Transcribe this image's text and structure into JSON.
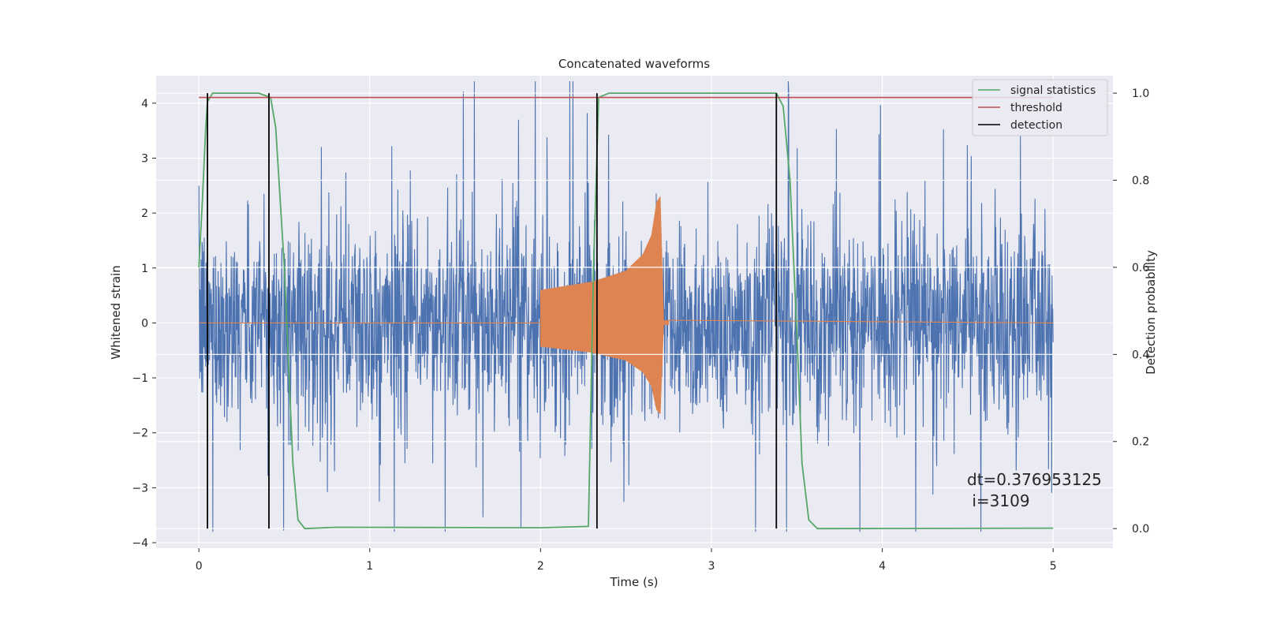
{
  "chart_data": {
    "type": "line",
    "title": "Concatenated waveforms",
    "xlabel": "Time (s)",
    "ylabel": "Whitened strain",
    "ylabel_right": "Detection probability",
    "xlim": [
      -0.25,
      5.35
    ],
    "ylim": [
      -4.1,
      4.5
    ],
    "ylim_right": [
      -0.045,
      1.04
    ],
    "x_ticks": [
      "0",
      "1",
      "2",
      "3",
      "4",
      "5"
    ],
    "y_ticks": [
      "4",
      "3",
      "2",
      "1",
      "0",
      "−1",
      "−2",
      "−3",
      "−4"
    ],
    "y_ticks_right": [
      "1.0",
      "0.8",
      "0.6",
      "0.4",
      "0.2",
      "0.0"
    ],
    "grid": true,
    "legend": {
      "placement": "top-right",
      "entries": [
        {
          "label": "signal statistics",
          "color": "#55a868"
        },
        {
          "label": "threshold",
          "color": "#c44e52"
        },
        {
          "label": "detection",
          "color": "#000000"
        }
      ]
    },
    "annotation": {
      "line1": "dt=0.376953125",
      "line2": " i=3109"
    },
    "series": [
      {
        "color": "#4c72b0",
        "axis": "left",
        "description": "whitened noise strain, approx. amplitude band",
        "x": [
          0,
          5
        ],
        "band_typical": 1.3,
        "band_peak": [
          -3.8,
          4.4
        ]
      },
      {
        "color": "#dd8452",
        "axis": "left",
        "description": "injected chirp waveform",
        "x": [
          0,
          2.0,
          2.3,
          2.5,
          2.6,
          2.65,
          2.68,
          2.7,
          2.72,
          5
        ],
        "amplitude": [
          0,
          0.6,
          0.75,
          0.95,
          1.25,
          1.6,
          2.2,
          2.3,
          0.05,
          0
        ]
      },
      {
        "name": "signal statistics",
        "color": "#55a868",
        "axis": "right",
        "x": [
          0,
          0.02,
          0.04,
          0.05,
          0.08,
          0.2,
          0.35,
          0.42,
          0.45,
          0.5,
          0.55,
          0.58,
          0.62,
          0.8,
          2.0,
          2.28,
          2.31,
          2.34,
          2.4,
          3.3,
          3.38,
          3.42,
          3.46,
          3.5,
          3.53,
          3.57,
          3.62,
          5.0
        ],
        "values": [
          0.6,
          0.75,
          0.92,
          0.98,
          1.0,
          1.0,
          1.0,
          0.99,
          0.92,
          0.6,
          0.15,
          0.02,
          0.0,
          0.003,
          0.002,
          0.005,
          0.6,
          0.99,
          1.0,
          1.0,
          1.0,
          0.97,
          0.8,
          0.45,
          0.15,
          0.02,
          0.0,
          0.001
        ]
      },
      {
        "name": "threshold",
        "color": "#c44e52",
        "axis": "right",
        "x": [
          0,
          5
        ],
        "values": [
          0.99,
          0.99
        ]
      },
      {
        "name": "detection",
        "color": "#000000",
        "axis": "right",
        "type": "vlines",
        "x": [
          0.05,
          0.41,
          2.33,
          3.38
        ],
        "range": [
          0.0,
          1.0
        ]
      }
    ]
  }
}
